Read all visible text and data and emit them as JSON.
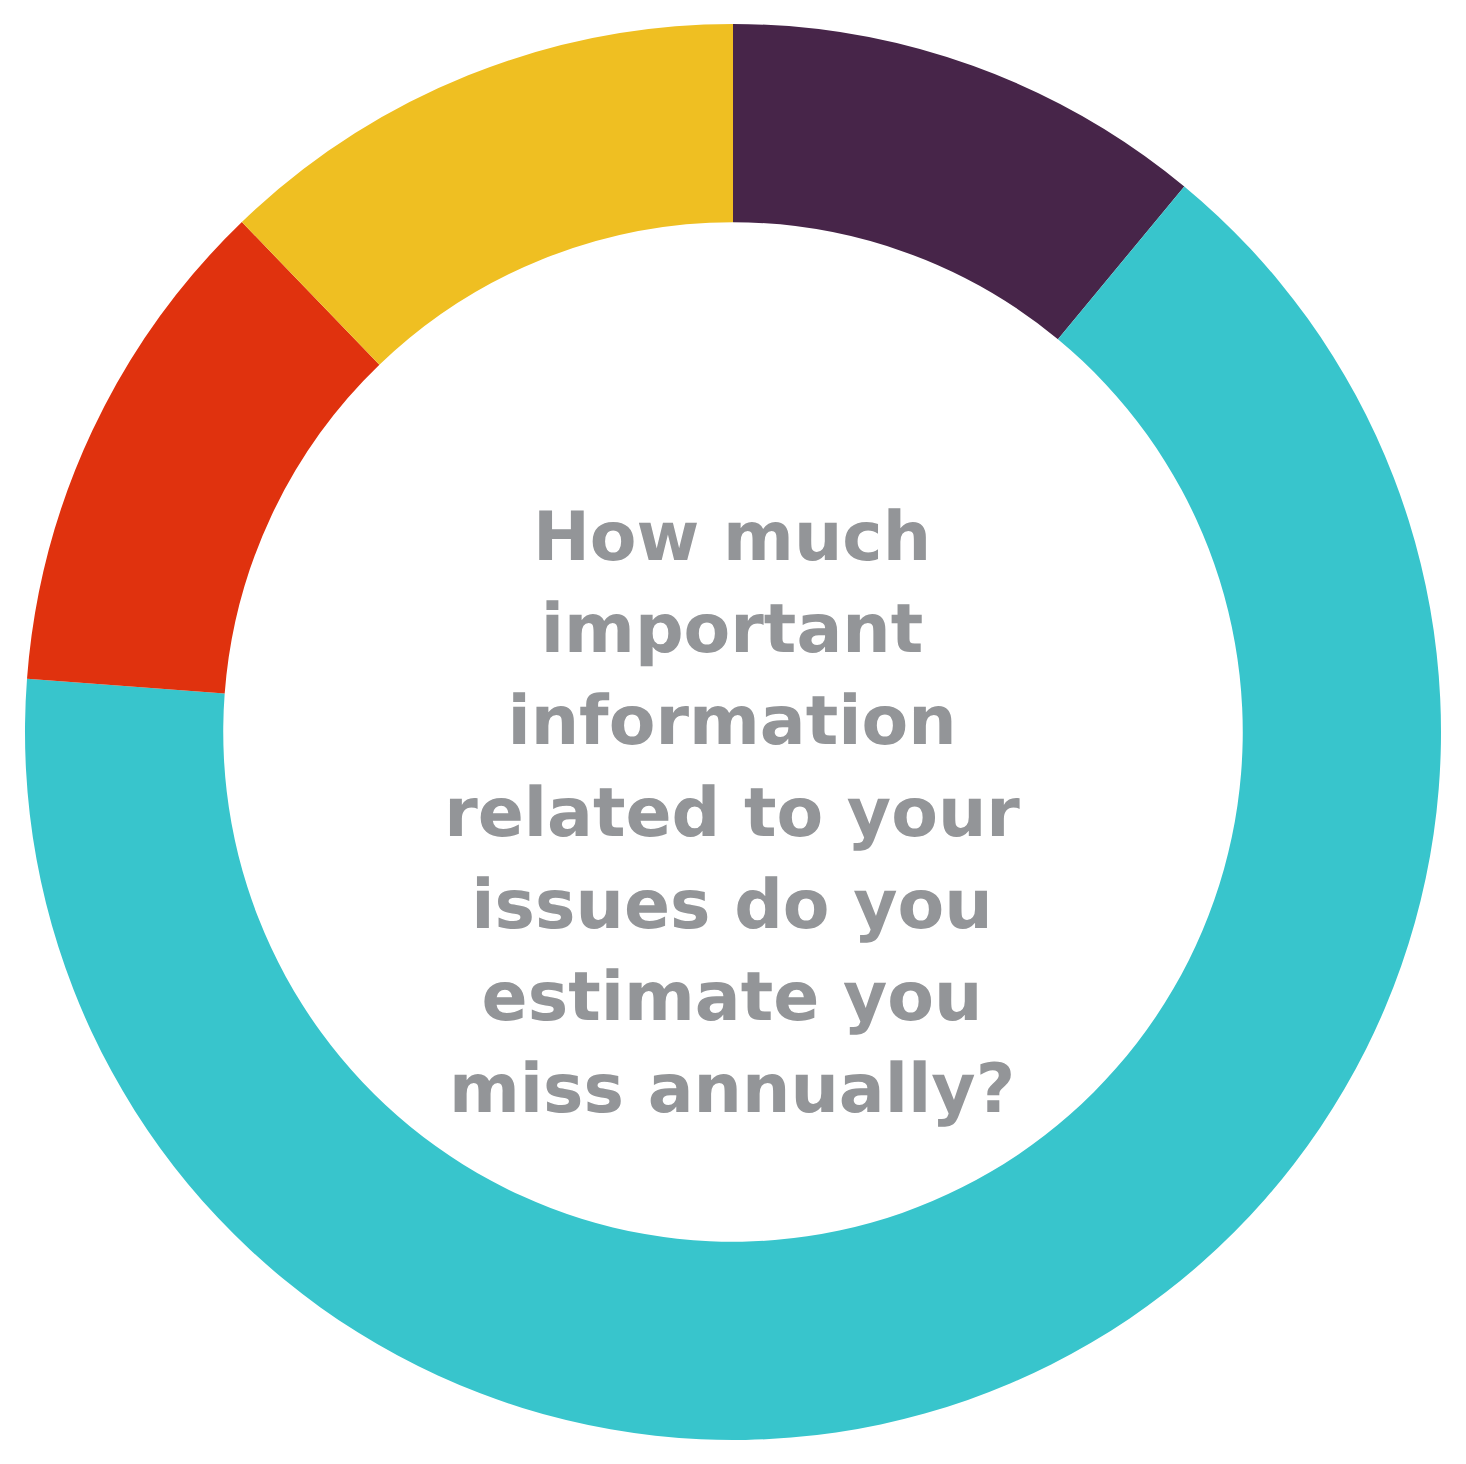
{
  "chart_data": {
    "type": "donut",
    "title": "How much important information related to your issues do you estimate you miss annually?",
    "categories": [
      null,
      null,
      null,
      null
    ],
    "values": [
      11.0,
      65.2,
      11.6,
      12.2
    ],
    "colors": [
      "#472549",
      "#38c5cc",
      "#e0320e",
      "#efbf22"
    ],
    "legend": false
  }
}
